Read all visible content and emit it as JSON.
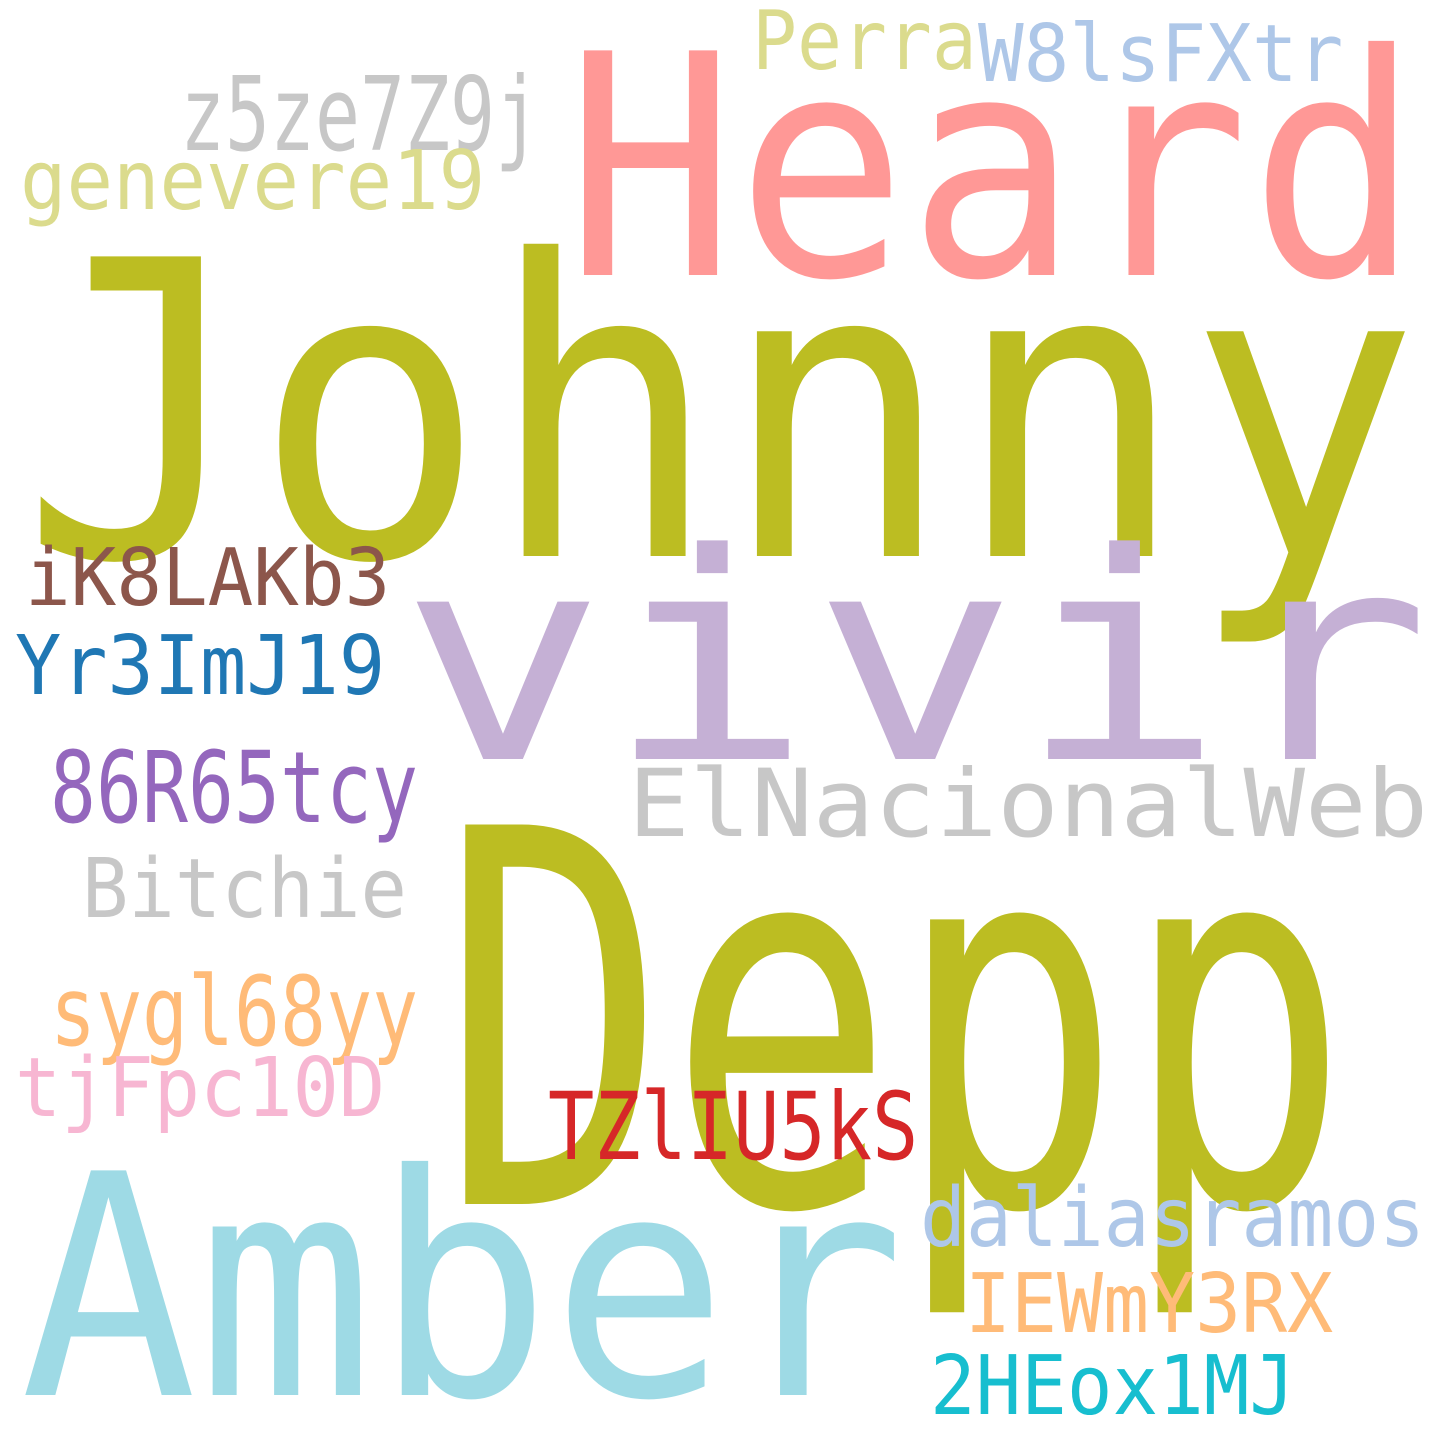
{
  "words": [
    {
      "key": "johnny",
      "text": "Johnny",
      "color": "#bcbd22"
    },
    {
      "key": "depp",
      "text": "Depp",
      "color": "#bcbd22"
    },
    {
      "key": "heard",
      "text": "Heard",
      "color": "#ff9896"
    },
    {
      "key": "vivir",
      "text": "vivir",
      "color": "#c5b0d5"
    },
    {
      "key": "amber",
      "text": "Amber",
      "color": "#9edae5"
    },
    {
      "key": "elnacionalweb",
      "text": "ElNacionalWeb",
      "color": "#c7c7c7"
    },
    {
      "key": "perra",
      "text": "Perra",
      "color": "#dbdb8d"
    },
    {
      "key": "w8lsfxtr",
      "text": "W8lsFXtr",
      "color": "#aec7e8"
    },
    {
      "key": "z5ze7z9j",
      "text": "z5ze7Z9j",
      "color": "#c7c7c7"
    },
    {
      "key": "genevere19",
      "text": "genevere19",
      "color": "#dbdb8d"
    },
    {
      "key": "ik8lakb3",
      "text": "iK8LAKb3",
      "color": "#8c564b"
    },
    {
      "key": "yr3imj19",
      "text": "Yr3ImJ19",
      "color": "#1f77b4"
    },
    {
      "key": "86r65tcy",
      "text": "86R65tcy",
      "color": "#9467bd"
    },
    {
      "key": "bitchie",
      "text": "Bitchie",
      "color": "#c7c7c7"
    },
    {
      "key": "sygl68yy",
      "text": "sygl68yy",
      "color": "#ffbb78"
    },
    {
      "key": "tjfpc10d",
      "text": "tjFpc10D",
      "color": "#f7b6d2"
    },
    {
      "key": "tzliu5ks",
      "text": "TZlIU5kS",
      "color": "#d62728"
    },
    {
      "key": "daliasramos",
      "text": "daliasramos",
      "color": "#aec7e8"
    },
    {
      "key": "iewmy3rx",
      "text": "IEWmY3RX",
      "color": "#ffbb78"
    },
    {
      "key": "2heox1mj",
      "text": "2HEox1MJ",
      "color": "#17becf"
    }
  ]
}
